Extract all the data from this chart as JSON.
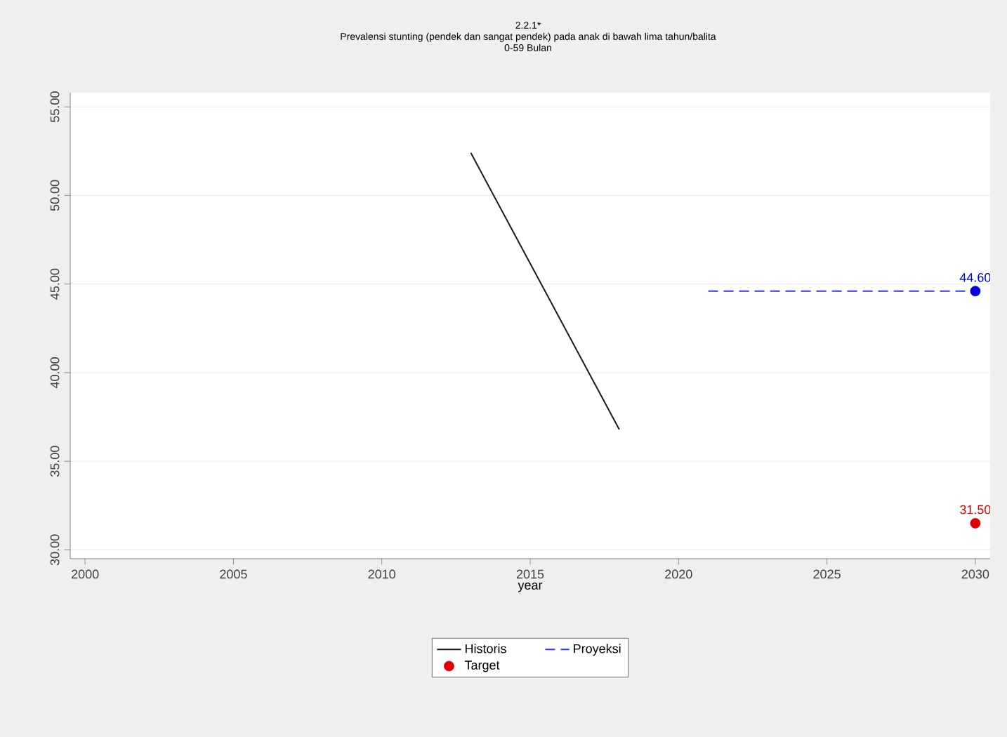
{
  "chart_data": {
    "type": "line",
    "title": "2.2.1*",
    "subtitle": "Prevalensi stunting (pendek dan sangat pendek) pada anak di bawah lima tahun/balita",
    "annotations": [
      "0-59 Bulan"
    ],
    "xlabel": "year",
    "series": [
      {
        "name": "Historis",
        "color": "#1a1a1a",
        "line_style": "solid",
        "x": [
          2013,
          2018
        ],
        "values": [
          52.4,
          36.8
        ]
      },
      {
        "name": "Proyeksi",
        "color": "#3333ff",
        "line_style": "dashed",
        "x": [
          2021,
          2030
        ],
        "values": [
          44.6,
          44.6
        ]
      },
      {
        "type": "scatter",
        "color": "#0000e0",
        "marker": "circle",
        "x": [
          2030
        ],
        "values": [
          44.6
        ],
        "value_labels": [
          "44.60"
        ]
      },
      {
        "name": "Target",
        "type": "scatter",
        "color": "#e00000",
        "marker": "circle",
        "x": [
          2030
        ],
        "values": [
          31.5
        ],
        "value_labels": [
          "31.50"
        ]
      }
    ],
    "xlim": [
      1999.5,
      2030.5
    ],
    "ylim": [
      29.5,
      55.8
    ],
    "xticks": [
      2000,
      2005,
      2010,
      2015,
      2020,
      2025,
      2030
    ],
    "yticks": [
      {
        "value": 30,
        "label": "30.00"
      },
      {
        "value": 35,
        "label": "35.00"
      },
      {
        "value": 40,
        "label": "40.00"
      },
      {
        "value": 45,
        "label": "45.00"
      },
      {
        "value": 50,
        "label": "50.00"
      },
      {
        "value": 55,
        "label": "55.00"
      }
    ],
    "grid": "y",
    "legend": "bottom"
  }
}
